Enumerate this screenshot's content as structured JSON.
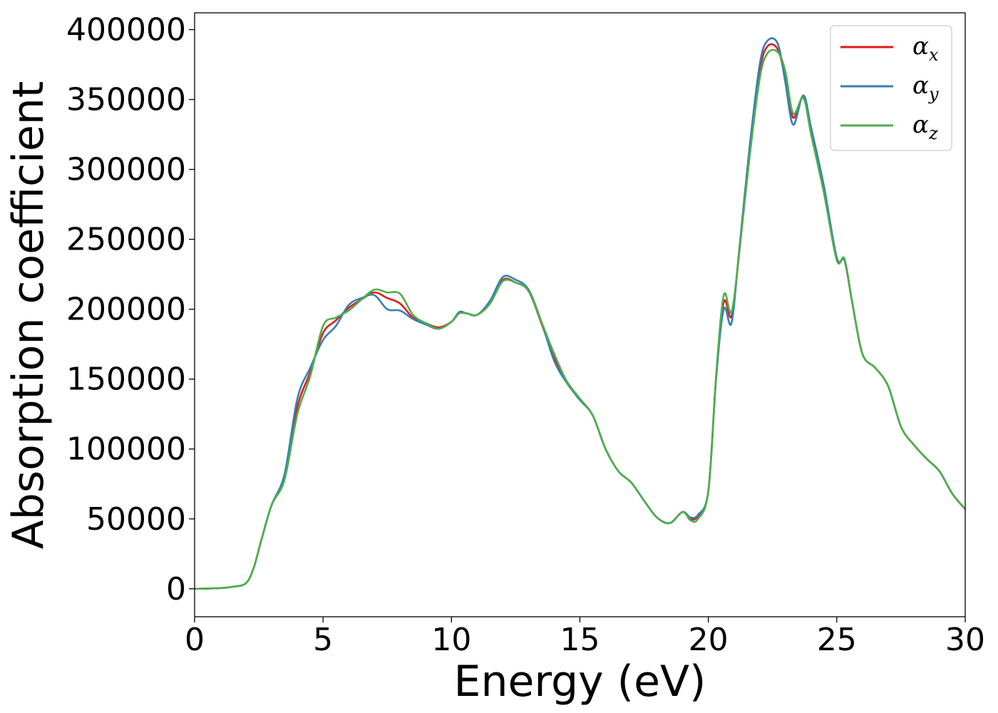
{
  "chart_data": {
    "type": "line",
    "title": "",
    "xlabel": "Energy (eV)",
    "ylabel": "Absorption coefficient",
    "xlim": [
      0,
      30
    ],
    "ylim": [
      -20000,
      412000
    ],
    "xticks": [
      0,
      5,
      10,
      15,
      20,
      25,
      30
    ],
    "yticks": [
      0,
      50000,
      100000,
      150000,
      200000,
      250000,
      300000,
      350000,
      400000
    ],
    "grid": false,
    "legend_position": "top-right",
    "legend": [
      {
        "base": "α",
        "sub": "x",
        "color": "#e41a1c"
      },
      {
        "base": "α",
        "sub": "y",
        "color": "#377eb8"
      },
      {
        "base": "α",
        "sub": "z",
        "color": "#4daf4a"
      }
    ],
    "series": [
      {
        "color": "#e41a1c",
        "x": [
          0,
          1,
          1.5,
          2,
          2.3,
          2.6,
          3,
          3.5,
          4,
          4.5,
          5,
          5.5,
          6,
          6.5,
          7,
          7.5,
          8,
          8.5,
          9,
          9.5,
          10,
          10.3,
          10.6,
          11,
          11.5,
          12,
          12.5,
          13,
          13.5,
          14,
          14.5,
          15,
          15.5,
          16,
          16.5,
          17,
          17.5,
          18,
          18.5,
          19,
          19.3,
          19.6,
          20,
          20.3,
          20.6,
          20.9,
          21.2,
          21.6,
          22,
          22.3,
          22.7,
          23,
          23.3,
          23.7,
          24,
          24.5,
          25,
          25.3,
          25.6,
          26,
          26.5,
          27,
          27.5,
          28,
          28.5,
          29,
          29.5,
          30
        ],
        "y": [
          0,
          500,
          1500,
          4000,
          15000,
          35000,
          60000,
          80000,
          130000,
          155000,
          183000,
          192000,
          201000,
          207000,
          212000,
          208000,
          204000,
          194000,
          190000,
          187000,
          191000,
          197000,
          197000,
          196000,
          205000,
          221000,
          219000,
          213000,
          190000,
          165000,
          148000,
          136000,
          124000,
          100000,
          84000,
          76000,
          63000,
          51000,
          47000,
          55000,
          50000,
          52000,
          70000,
          150000,
          205000,
          195000,
          240000,
          310000,
          370000,
          388000,
          386000,
          365000,
          337000,
          352000,
          328000,
          285000,
          236000,
          235000,
          205000,
          168000,
          158000,
          145000,
          116000,
          103000,
          93000,
          84000,
          68000,
          57000
        ]
      },
      {
        "color": "#377eb8",
        "x": [
          0,
          1,
          1.5,
          2,
          2.3,
          2.6,
          3,
          3.5,
          4,
          4.5,
          5,
          5.5,
          6,
          6.5,
          7,
          7.5,
          8,
          8.5,
          9,
          9.5,
          10,
          10.3,
          10.6,
          11,
          11.5,
          12,
          12.5,
          13,
          13.5,
          14,
          14.5,
          15,
          15.5,
          16,
          16.5,
          17,
          17.5,
          18,
          18.5,
          19,
          19.3,
          19.6,
          20,
          20.3,
          20.6,
          20.9,
          21.2,
          21.6,
          22,
          22.3,
          22.7,
          23,
          23.3,
          23.7,
          24,
          24.5,
          25,
          25.3,
          25.6,
          26,
          26.5,
          27,
          27.5,
          28,
          28.5,
          29,
          29.5,
          30
        ],
        "y": [
          0,
          500,
          1500,
          4000,
          15000,
          35000,
          60000,
          82000,
          136000,
          158000,
          178000,
          188000,
          203000,
          208000,
          210000,
          200000,
          199000,
          193000,
          189000,
          186000,
          191000,
          198000,
          197000,
          196000,
          206000,
          223000,
          221000,
          214000,
          191000,
          163000,
          147000,
          135000,
          124000,
          100000,
          84000,
          76000,
          63000,
          51000,
          47000,
          55000,
          51000,
          53000,
          70000,
          150000,
          200000,
          190000,
          242000,
          315000,
          375000,
          392000,
          390000,
          362000,
          332000,
          353000,
          330000,
          288000,
          237000,
          235000,
          205000,
          168000,
          158000,
          145000,
          116000,
          103000,
          93000,
          84000,
          68000,
          57000
        ]
      },
      {
        "color": "#4daf4a",
        "x": [
          0,
          1,
          1.5,
          2,
          2.3,
          2.6,
          3,
          3.5,
          4,
          4.5,
          5,
          5.5,
          6,
          6.5,
          7,
          7.5,
          8,
          8.5,
          9,
          9.5,
          10,
          10.3,
          10.6,
          11,
          11.5,
          12,
          12.5,
          13,
          13.5,
          14,
          14.5,
          15,
          15.5,
          16,
          16.5,
          17,
          17.5,
          18,
          18.5,
          19,
          19.3,
          19.6,
          20,
          20.3,
          20.6,
          20.9,
          21.2,
          21.6,
          22,
          22.3,
          22.7,
          23,
          23.3,
          23.7,
          24,
          24.5,
          25,
          25.3,
          25.6,
          26,
          26.5,
          27,
          27.5,
          28,
          28.5,
          29,
          29.5,
          30
        ],
        "y": [
          0,
          500,
          1500,
          4000,
          15000,
          35000,
          60000,
          78000,
          125000,
          152000,
          188000,
          194000,
          199000,
          207000,
          214000,
          212000,
          211000,
          196000,
          190000,
          186000,
          191000,
          197000,
          197000,
          196000,
          204000,
          220000,
          219000,
          213000,
          191000,
          168000,
          148000,
          136000,
          124000,
          100000,
          84000,
          76000,
          63000,
          51000,
          47000,
          55000,
          49000,
          50000,
          70000,
          152000,
          210000,
          198000,
          240000,
          308000,
          365000,
          383000,
          384000,
          370000,
          340000,
          351000,
          325000,
          283000,
          235000,
          236000,
          205000,
          168000,
          158000,
          145000,
          116000,
          103000,
          93000,
          84000,
          68000,
          57000
        ]
      }
    ]
  }
}
